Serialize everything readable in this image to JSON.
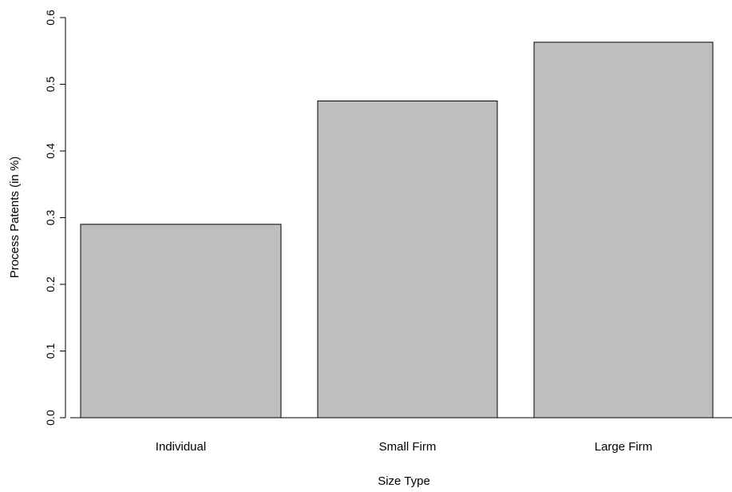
{
  "chart_data": {
    "type": "bar",
    "title": "",
    "xlabel": "Size Type",
    "ylabel": "Process Patents (in %)",
    "categories": [
      "Individual",
      "Small Firm",
      "Large Firm"
    ],
    "values": [
      0.29,
      0.475,
      0.563
    ],
    "ylim": [
      0,
      0.6
    ],
    "yticks": [
      "0.0",
      "0.1",
      "0.2",
      "0.3",
      "0.4",
      "0.5",
      "0.6"
    ],
    "grid": false,
    "legend": "none",
    "bar_color": "#bebebe",
    "bar_edge_color": "#000000"
  }
}
